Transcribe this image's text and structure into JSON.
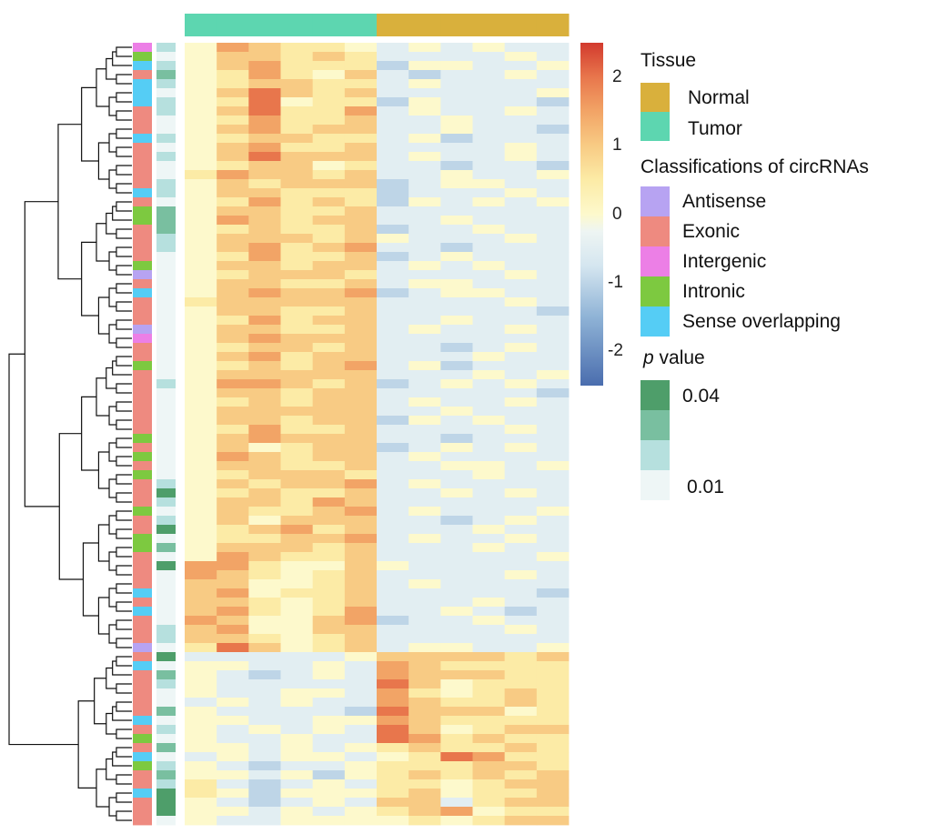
{
  "chart_data": {
    "type": "heatmap",
    "title": "",
    "columns_group": [
      "Tumor",
      "Tumor",
      "Tumor",
      "Tumor",
      "Tumor",
      "Tumor",
      "Normal",
      "Normal",
      "Normal",
      "Normal",
      "Normal",
      "Normal"
    ],
    "value_encoding": "each digit d encodes z-score = d/2 - 2",
    "rows": [
      "476554343433",
      "466565333343",
      "467555244334",
      "457546323343",
      "456655343333",
      "468656333334",
      "458455243332",
      "468557343343",
      "457556334333",
      "467566334332",
      "456655342333",
      "467556333343",
      "468666343343",
      "456645332332",
      "576656334334",
      "465666234433",
      "466555233343",
      "457565243434",
      "466556333333",
      "476566334333",
      "456556233433",
      "466656433343",
      "467567332333",
      "457556234333",
      "466566343433",
      "456665333343",
      "466556344333",
      "467667234433",
      "566666333343",
      "466556333332",
      "457566334333",
      "466556343343",
      "467666333333",
      "456656332343",
      "467566333433",
      "456567342333",
      "466666333434",
      "477656234343",
      "466566333332",
      "456566343343",
      "466666334333",
      "466566243433",
      "457556333343",
      "467666332333",
      "464566234343",
      "476566343333",
      "466556334434",
      "456665333433",
      "465667343333",
      "456556334343",
      "466576333333",
      "465567343334",
      "464666332343",
      "456756333433",
      "455667343343",
      "466656333433",
      "476556333334",
      "775446433333",
      "765456333343",
      "664456343333",
      "674556333332",
      "665456333433",
      "675457334323",
      "764467233433",
      "674466333343",
      "665456333333",
      "586456344334",
      "333334666656",
      "443343765555",
      "432343766655",
      "433333864555",
      "433443754565",
      "343433765565",
      "433332866645",
      "443344765555",
      "434343864566",
      "433433875655",
      "443434565565",
      "343443458755",
      "432334555665",
      "443424565656",
      "532343554566",
      "542444564556",
      "432343663566",
      "443434567455",
      "433444454566"
    ],
    "row_classification": "GISESSSEEESEEEEESEIIEEEEIAESEEEAGEEIEEEEEEEIEIEIEEEIEEIIEEEESESEEEAESEEEEESEIESIEESEEE",
    "row_pvalue_level": "10121011001010011022211000000000000001000000000013101302030000001103021002010201213330",
    "color_range": [
      -2.5,
      2.5
    ],
    "colorbar_ticks": [
      "2",
      "1",
      "0",
      "-1",
      "-2"
    ],
    "colorbar_tick_values": [
      2,
      1,
      0,
      -1,
      -2
    ],
    "scale_colors": [
      "#4A6DAE",
      "#8FB3D6",
      "#D5E6F0",
      "#EEF5F3",
      "#FDF9CC",
      "#FCEBA6",
      "#F8CB84",
      "#F2A466",
      "#E8764C",
      "#D23A2E"
    ],
    "scale_stops": [
      -2.5,
      -1.5,
      -0.75,
      -0.25,
      0,
      0.5,
      1,
      1.5,
      2,
      2.5
    ],
    "main_split_after_row": 66
  },
  "legend": {
    "tissue": {
      "title": "Tissue",
      "items": [
        {
          "label": "Normal",
          "color": "#D9B03C"
        },
        {
          "label": "Tumor",
          "color": "#5DD6B0"
        }
      ]
    },
    "classification": {
      "title": "Classifications of circRNAs",
      "items": [
        {
          "code": "A",
          "label": "Antisense",
          "color": "#B7A3F2"
        },
        {
          "code": "E",
          "label": "Exonic",
          "color": "#EE8A80"
        },
        {
          "code": "G",
          "label": "Intergenic",
          "color": "#EC7FE6"
        },
        {
          "code": "I",
          "label": "Intronic",
          "color": "#7DC940"
        },
        {
          "code": "S",
          "label": "Sense overlapping",
          "color": "#55CDF5"
        }
      ]
    },
    "pvalue": {
      "title_italic": "p",
      "title_rest": " value",
      "high_label": "0.04",
      "low_label": "0.01",
      "colors": [
        "#EEF6F6",
        "#B6E0DE",
        "#79BFA0",
        "#4E9E6A"
      ]
    }
  }
}
